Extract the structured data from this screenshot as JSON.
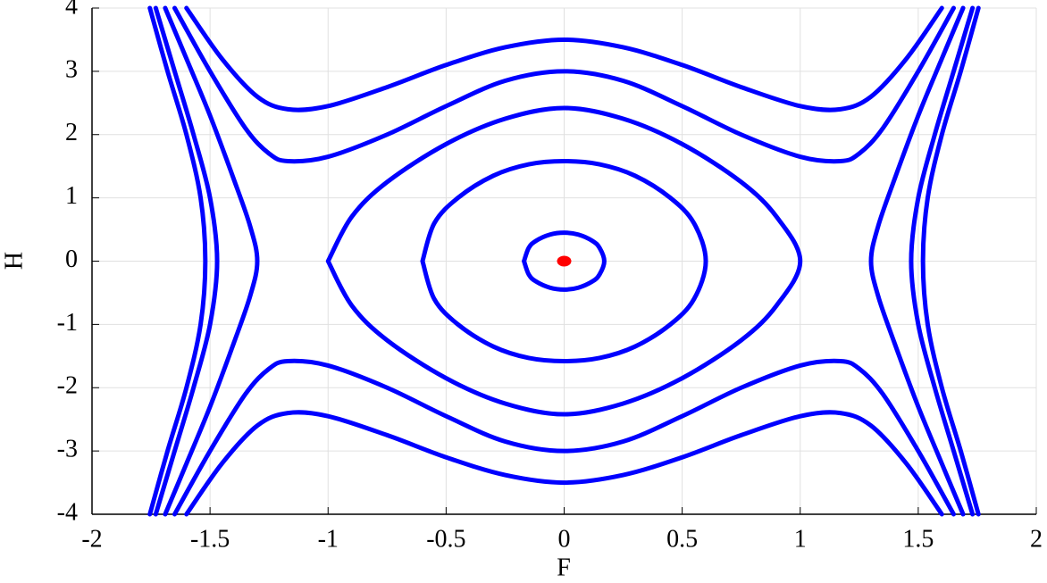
{
  "chart_data": {
    "type": "line",
    "xlabel": "F",
    "ylabel": "H",
    "xlim": [
      -2,
      2
    ],
    "xticks": [
      -2,
      -1.5,
      -1,
      -0.5,
      0,
      0.5,
      1,
      1.5,
      2
    ],
    "ylim": [
      -4,
      4
    ],
    "yticks": [
      -4,
      -3,
      -2,
      -1,
      0,
      1,
      2,
      3,
      4
    ],
    "grid": true,
    "line_color": "#0000ff",
    "curves": [
      {
        "x": [
          -0.17,
          -0.15,
          -0.12,
          -0.06,
          0,
          0.06,
          0.12,
          0.15,
          0.17,
          0.15,
          0.12,
          0.06,
          0,
          -0.06,
          -0.12,
          -0.15,
          -0.17
        ],
        "y": [
          0,
          0.21,
          0.32,
          0.42,
          0.45,
          0.42,
          0.32,
          0.21,
          0,
          -0.21,
          -0.32,
          -0.42,
          -0.45,
          -0.42,
          -0.32,
          -0.21,
          0
        ]
      },
      {
        "x": [
          -0.6,
          -0.55,
          -0.45,
          -0.3,
          -0.15,
          0,
          0.15,
          0.3,
          0.45,
          0.55,
          0.6,
          0.55,
          0.45,
          0.3,
          0.15,
          0,
          -0.15,
          -0.3,
          -0.45,
          -0.55,
          -0.6
        ],
        "y": [
          0,
          0.6,
          1.0,
          1.35,
          1.53,
          1.58,
          1.53,
          1.35,
          1.0,
          0.6,
          0,
          -0.6,
          -1.0,
          -1.35,
          -1.53,
          -1.58,
          -1.53,
          -1.35,
          -1.0,
          -0.6,
          0
        ]
      },
      {
        "x": [
          -1,
          -0.9,
          -0.75,
          -0.5,
          -0.25,
          0,
          0.25,
          0.5,
          0.75,
          0.9,
          1,
          0.9,
          0.75,
          0.5,
          0.25,
          0,
          -0.25,
          -0.5,
          -0.75,
          -0.9,
          -1
        ],
        "y": [
          0,
          0.7,
          1.25,
          1.85,
          2.25,
          2.42,
          2.25,
          1.85,
          1.25,
          0.7,
          0,
          -0.7,
          -1.25,
          -1.85,
          -2.25,
          -2.42,
          -2.25,
          -1.85,
          -1.25,
          -0.7,
          0
        ]
      },
      {
        "x": [
          -1.6,
          -1.45,
          -1.3,
          -1.17,
          -1,
          -0.75,
          -0.5,
          -0.25,
          0,
          0.25,
          0.5,
          0.75,
          1,
          1.17,
          1.3,
          1.45,
          1.6
        ],
        "y": [
          4,
          3.2,
          2.6,
          2.4,
          2.45,
          2.75,
          3.1,
          3.38,
          3.5,
          3.38,
          3.1,
          2.75,
          2.45,
          2.4,
          2.6,
          3.2,
          4
        ]
      },
      {
        "x": [
          -1.6,
          -1.45,
          -1.3,
          -1.17,
          -1,
          -0.75,
          -0.5,
          -0.25,
          0,
          0.25,
          0.5,
          0.75,
          1,
          1.17,
          1.3,
          1.45,
          1.6
        ],
        "y": [
          -4,
          -3.2,
          -2.6,
          -2.4,
          -2.45,
          -2.75,
          -3.1,
          -3.38,
          -3.5,
          -3.38,
          -3.1,
          -2.75,
          -2.45,
          -2.4,
          -2.6,
          -3.2,
          -4
        ]
      },
      {
        "x": [
          -1.65,
          -1.5,
          -1.35,
          -1.25,
          -1.17,
          -1,
          -0.75,
          -0.5,
          -0.25,
          0,
          0.25,
          0.5,
          0.75,
          1,
          1.17,
          1.25,
          1.35,
          1.5,
          1.65
        ],
        "y": [
          4,
          3.0,
          2.1,
          1.7,
          1.58,
          1.65,
          2.0,
          2.45,
          2.85,
          3.0,
          2.85,
          2.45,
          2.0,
          1.65,
          1.58,
          1.7,
          2.1,
          3.0,
          4
        ]
      },
      {
        "x": [
          -1.65,
          -1.5,
          -1.35,
          -1.25,
          -1.17,
          -1,
          -0.75,
          -0.5,
          -0.25,
          0,
          0.25,
          0.5,
          0.75,
          1,
          1.17,
          1.25,
          1.35,
          1.5,
          1.65
        ],
        "y": [
          -4,
          -3.0,
          -2.1,
          -1.7,
          -1.58,
          -1.65,
          -2.0,
          -2.45,
          -2.85,
          -3.0,
          -2.85,
          -2.45,
          -2.0,
          -1.65,
          -1.58,
          -1.7,
          -2.1,
          -3.0,
          -4
        ]
      },
      {
        "x": [
          -1.69,
          -1.6,
          -1.5,
          -1.4,
          -1.33,
          -1.3,
          -1.33,
          -1.4,
          -1.5,
          -1.6,
          -1.69
        ],
        "y": [
          4,
          3.2,
          2.3,
          1.3,
          0.55,
          0,
          -0.55,
          -1.3,
          -2.3,
          -3.2,
          -4
        ]
      },
      {
        "x": [
          -1.73,
          -1.65,
          -1.57,
          -1.5,
          -1.47,
          -1.5,
          -1.57,
          -1.65,
          -1.73
        ],
        "y": [
          4,
          3,
          2,
          1,
          0,
          -1,
          -2,
          -3,
          -4
        ]
      },
      {
        "x": [
          -1.755,
          -1.68,
          -1.6,
          -1.54,
          -1.52,
          -1.54,
          -1.6,
          -1.68,
          -1.755
        ],
        "y": [
          4,
          3,
          2,
          1,
          0,
          -1,
          -2,
          -3,
          -4
        ]
      },
      {
        "x": [
          1.69,
          1.6,
          1.5,
          1.4,
          1.33,
          1.3,
          1.33,
          1.4,
          1.5,
          1.6,
          1.69
        ],
        "y": [
          4,
          3.2,
          2.3,
          1.3,
          0.55,
          0,
          -0.55,
          -1.3,
          -2.3,
          -3.2,
          -4
        ]
      },
      {
        "x": [
          1.73,
          1.65,
          1.57,
          1.5,
          1.47,
          1.5,
          1.57,
          1.65,
          1.73
        ],
        "y": [
          4,
          3,
          2,
          1,
          0,
          -1,
          -2,
          -3,
          -4
        ]
      },
      {
        "x": [
          1.755,
          1.68,
          1.6,
          1.54,
          1.52,
          1.54,
          1.6,
          1.68,
          1.755
        ],
        "y": [
          4,
          3,
          2,
          1,
          0,
          -1,
          -2,
          -3,
          -4
        ]
      }
    ],
    "point": {
      "x": 0,
      "y": 0,
      "color": "#ff0000"
    }
  }
}
